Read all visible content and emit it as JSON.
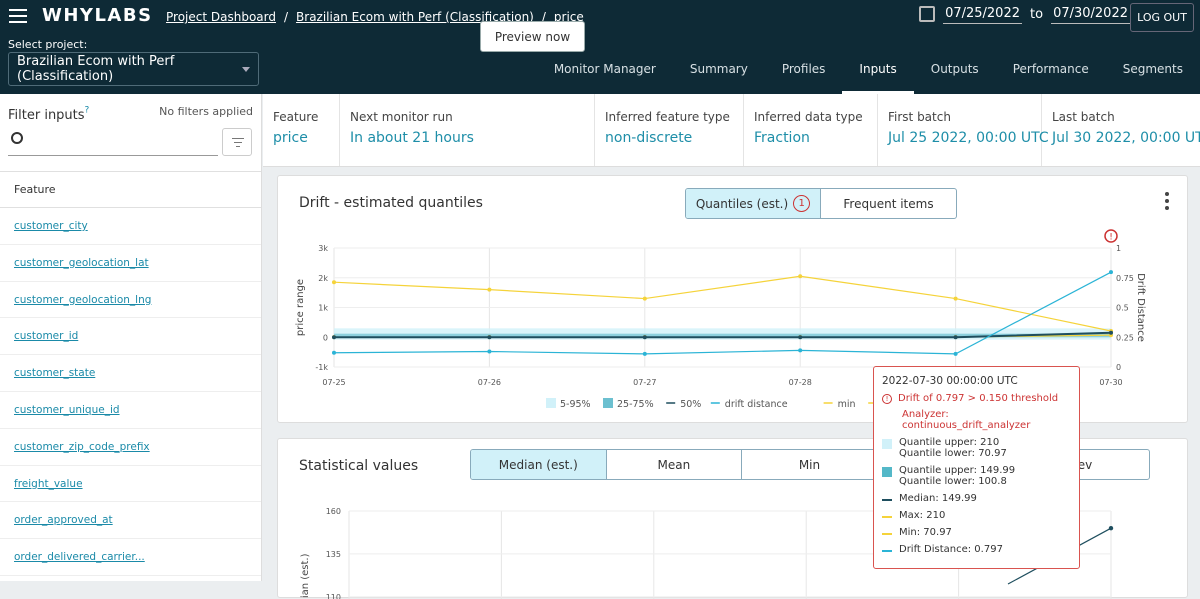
{
  "header": {
    "logo": "WHYLABS",
    "breadcrumb": [
      "Project Dashboard",
      "Brazilian Ecom with Perf (Classification)",
      "price"
    ],
    "select_label": "Select project:",
    "project": "Brazilian Ecom with Perf (Classification)",
    "date_from": "07/25/2022",
    "date_to_label": "to",
    "date_to": "07/30/2022",
    "logout": "LOG OUT",
    "tabs": [
      "Monitor Manager",
      "Summary",
      "Profiles",
      "Inputs",
      "Outputs",
      "Performance",
      "Segments"
    ],
    "active_tab": "Inputs"
  },
  "sidebar": {
    "title": "Filter inputs",
    "no_filters": "No filters applied",
    "column_header": "Feature",
    "features": [
      "customer_city",
      "customer_geolocation_lat",
      "customer_geolocation_lng",
      "customer_id",
      "customer_state",
      "customer_unique_id",
      "customer_zip_code_prefix",
      "freight_value",
      "order_approved_at",
      "order_delivered_carrier..."
    ]
  },
  "info": {
    "feature_label": "Feature",
    "feature_value": "price",
    "next_run_label": "Next monitor run",
    "next_run_value": "In about 21 hours",
    "preview": "Preview now",
    "type_label": "Inferred feature type",
    "type_value": "non-discrete",
    "dtype_label": "Inferred data type",
    "dtype_value": "Fraction",
    "first_label": "First batch",
    "first_value": "Jul 25 2022, 00:00 UTC",
    "last_label": "Last batch",
    "last_value": "Jul 30 2022, 00:00 UTC"
  },
  "drift_card": {
    "title": "Drift - estimated quantiles",
    "tab_quantiles": "Quantiles (est.)",
    "tab_quantiles_badge": "1",
    "tab_frequent": "Frequent items"
  },
  "chart_data": [
    {
      "type": "line",
      "x": [
        "07-25",
        "07-26",
        "07-27",
        "07-28",
        "07-29",
        "07-30"
      ],
      "ylabel": "price range",
      "y2label": "Drift Distance",
      "ylim": [
        -1000,
        3000
      ],
      "y_ticks": [
        "-1k",
        "0",
        "1k",
        "2k",
        "3k"
      ],
      "y2lim": [
        0,
        1
      ],
      "y2_ticks": [
        "0",
        "0.25",
        "0.5",
        "0.75",
        "1"
      ],
      "series": [
        {
          "name": "max",
          "values": [
            1850,
            1600,
            1300,
            2050,
            1300,
            210
          ],
          "color": "#f5d33a"
        },
        {
          "name": "min",
          "values": [
            5,
            5,
            5,
            5,
            5,
            70.97
          ],
          "color": "#f5d33a"
        },
        {
          "name": "50%",
          "values": [
            0,
            0,
            0,
            0,
            0,
            149.99
          ],
          "color": "#1e4e5e"
        },
        {
          "name": "drift distance",
          "axis": "y2",
          "values": [
            0.12,
            0.13,
            0.11,
            0.14,
            0.11,
            0.797
          ],
          "color": "#2bb4d6"
        }
      ],
      "bands": [
        {
          "name": "5-95%",
          "color": "#d1f1f9"
        },
        {
          "name": "25-75%",
          "color": "#6cc0d0"
        }
      ],
      "legend": [
        "5-95%",
        "25-75%",
        "50%",
        "drift distance",
        "min",
        "max"
      ]
    },
    {
      "type": "line",
      "ylabel": "dian (est.)",
      "y_ticks": [
        "160",
        "135",
        "110"
      ],
      "ylim": [
        100,
        160
      ],
      "series": [
        {
          "name": "Median (est.)",
          "values": [
            149.99
          ],
          "color": "#1e4e5e"
        }
      ]
    }
  ],
  "tooltip": {
    "date": "2022-07-30 00:00:00 UTC",
    "drift": "Drift of 0.797 > 0.150 threshold",
    "analyzer": "Analyzer: continuous_drift_analyzer",
    "q_upper1": "Quantile upper: 210",
    "q_lower1": "Quantile lower: 70.97",
    "q_upper2": "Quantile upper: 149.99",
    "q_lower2": "Quantile lower: 100.8",
    "median": "Median: 149.99",
    "max": "Max: 210",
    "min": "Min: 70.97",
    "drift_distance": "Drift Distance: 0.797"
  },
  "stats_card": {
    "title": "Statistical values",
    "tabs": [
      "Median (est.)",
      "Mean",
      "Min"
    ],
    "partial_tab": "dev"
  }
}
